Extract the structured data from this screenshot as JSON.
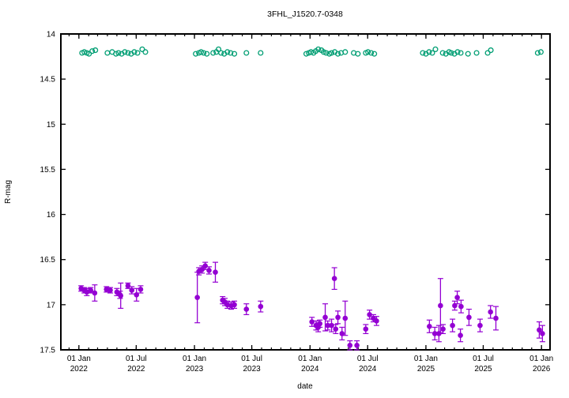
{
  "chart_data": {
    "type": "scatter",
    "title": "3FHL_J1520.7-0348",
    "xlabel": "date",
    "ylabel": "R-mag",
    "background": "#ffffff",
    "frame_color": "#000000",
    "grid": false,
    "legend": "none",
    "y_axis": {
      "limits": [
        17.5,
        14.0
      ],
      "inverted": true,
      "ticks": [
        14,
        14.5,
        15,
        15.5,
        16,
        16.5,
        17,
        17.5
      ]
    },
    "x_axis": {
      "range": [
        "2021-11-05",
        "2026-01-28"
      ],
      "minor_tick_interval": "monthly",
      "major_ticks": [
        {
          "date": "2022-01-01",
          "line1": "01 Jan",
          "line2": "2022"
        },
        {
          "date": "2022-07-01",
          "line1": "01 Jul",
          "line2": "2022"
        },
        {
          "date": "2023-01-01",
          "line1": "01 Jan",
          "line2": "2023"
        },
        {
          "date": "2023-07-01",
          "line1": "01 Jul",
          "line2": "2023"
        },
        {
          "date": "2024-01-01",
          "line1": "01 Jan",
          "line2": "2024"
        },
        {
          "date": "2024-07-01",
          "line1": "01 Jul",
          "line2": "2024"
        },
        {
          "date": "2025-01-01",
          "line1": "01 Jan",
          "line2": "2025"
        },
        {
          "date": "2025-07-01",
          "line1": "01 Jul",
          "line2": "2025"
        },
        {
          "date": "2026-01-01",
          "line1": "01 Jan",
          "line2": "2026"
        }
      ]
    },
    "series": [
      {
        "name": "bright-series-open-circles",
        "marker": "open-circle",
        "color": "#009e73",
        "error_bars": false,
        "points": [
          [
            "2022-01-11",
            14.21
          ],
          [
            "2022-01-18",
            14.2
          ],
          [
            "2022-01-26",
            14.21
          ],
          [
            "2022-02-02",
            14.22
          ],
          [
            "2022-02-12",
            14.19
          ],
          [
            "2022-02-22",
            14.18
          ],
          [
            "2022-04-01",
            14.21
          ],
          [
            "2022-04-16",
            14.2
          ],
          [
            "2022-04-28",
            14.22
          ],
          [
            "2022-05-06",
            14.21
          ],
          [
            "2022-05-16",
            14.22
          ],
          [
            "2022-05-26",
            14.2
          ],
          [
            "2022-06-05",
            14.21
          ],
          [
            "2022-06-15",
            14.22
          ],
          [
            "2022-06-25",
            14.2
          ],
          [
            "2022-07-05",
            14.21
          ],
          [
            "2022-07-20",
            14.17
          ],
          [
            "2022-07-30",
            14.2
          ],
          [
            "2023-01-05",
            14.22
          ],
          [
            "2023-01-15",
            14.21
          ],
          [
            "2023-01-22",
            14.2
          ],
          [
            "2023-01-30",
            14.21
          ],
          [
            "2023-02-09",
            14.22
          ],
          [
            "2023-03-01",
            14.21
          ],
          [
            "2023-03-11",
            14.2
          ],
          [
            "2023-03-18",
            14.17
          ],
          [
            "2023-03-26",
            14.21
          ],
          [
            "2023-04-05",
            14.22
          ],
          [
            "2023-04-15",
            14.2
          ],
          [
            "2023-04-25",
            14.21
          ],
          [
            "2023-05-07",
            14.22
          ],
          [
            "2023-06-14",
            14.21
          ],
          [
            "2023-07-29",
            14.21
          ],
          [
            "2023-12-20",
            14.22
          ],
          [
            "2023-12-28",
            14.21
          ],
          [
            "2024-01-04",
            14.2
          ],
          [
            "2024-01-12",
            14.21
          ],
          [
            "2024-01-19",
            14.19
          ],
          [
            "2024-01-27",
            14.17
          ],
          [
            "2024-02-06",
            14.18
          ],
          [
            "2024-02-13",
            14.2
          ],
          [
            "2024-02-21",
            14.21
          ],
          [
            "2024-03-02",
            14.22
          ],
          [
            "2024-03-09",
            14.21
          ],
          [
            "2024-03-19",
            14.2
          ],
          [
            "2024-03-29",
            14.22
          ],
          [
            "2024-04-08",
            14.21
          ],
          [
            "2024-04-21",
            14.2
          ],
          [
            "2024-05-18",
            14.21
          ],
          [
            "2024-05-31",
            14.22
          ],
          [
            "2024-06-25",
            14.21
          ],
          [
            "2024-07-02",
            14.2
          ],
          [
            "2024-07-12",
            14.21
          ],
          [
            "2024-07-22",
            14.22
          ],
          [
            "2024-12-22",
            14.21
          ],
          [
            "2025-01-01",
            14.22
          ],
          [
            "2025-01-11",
            14.2
          ],
          [
            "2025-01-21",
            14.21
          ],
          [
            "2025-01-31",
            14.17
          ],
          [
            "2025-02-23",
            14.21
          ],
          [
            "2025-03-05",
            14.22
          ],
          [
            "2025-03-15",
            14.2
          ],
          [
            "2025-03-22",
            14.21
          ],
          [
            "2025-04-01",
            14.22
          ],
          [
            "2025-04-11",
            14.2
          ],
          [
            "2025-04-21",
            14.21
          ],
          [
            "2025-05-14",
            14.22
          ],
          [
            "2025-06-10",
            14.21
          ],
          [
            "2025-07-15",
            14.21
          ],
          [
            "2025-07-25",
            14.18
          ],
          [
            "2025-12-20",
            14.21
          ],
          [
            "2025-12-30",
            14.2
          ]
        ]
      },
      {
        "name": "faint-series-filled-circles",
        "marker": "filled-circle",
        "color": "#9400d3",
        "error_bars": true,
        "points": [
          [
            "2022-01-08",
            16.82,
            0.03
          ],
          [
            "2022-01-18",
            16.84,
            0.03
          ],
          [
            "2022-01-26",
            16.86,
            0.04
          ],
          [
            "2022-02-07",
            16.84,
            0.03
          ],
          [
            "2022-02-20",
            16.87,
            0.09
          ],
          [
            "2022-03-29",
            16.83,
            0.03
          ],
          [
            "2022-04-10",
            16.84,
            0.03
          ],
          [
            "2022-05-01",
            16.86,
            0.04
          ],
          [
            "2022-05-11",
            16.89,
            0.04
          ],
          [
            "2022-05-13",
            16.9,
            0.14
          ],
          [
            "2022-06-05",
            16.79,
            0.03
          ],
          [
            "2022-06-17",
            16.84,
            0.04
          ],
          [
            "2022-07-02",
            16.89,
            0.07
          ],
          [
            "2022-07-15",
            16.83,
            0.04
          ],
          [
            "2023-01-10",
            16.92,
            0.28
          ],
          [
            "2023-01-15",
            16.63,
            0.04
          ],
          [
            "2023-01-25",
            16.61,
            0.04
          ],
          [
            "2023-02-04",
            16.57,
            0.04
          ],
          [
            "2023-02-16",
            16.62,
            0.04
          ],
          [
            "2023-03-08",
            16.64,
            0.11
          ],
          [
            "2023-03-31",
            16.95,
            0.04
          ],
          [
            "2023-04-07",
            16.97,
            0.04
          ],
          [
            "2023-04-15",
            17.0,
            0.04
          ],
          [
            "2023-04-27",
            17.01,
            0.04
          ],
          [
            "2023-05-07",
            17.0,
            0.04
          ],
          [
            "2023-06-14",
            17.05,
            0.06
          ],
          [
            "2023-07-29",
            17.02,
            0.06
          ],
          [
            "2024-01-07",
            17.19,
            0.05
          ],
          [
            "2024-01-20",
            17.23,
            0.05
          ],
          [
            "2024-01-27",
            17.25,
            0.05
          ],
          [
            "2024-02-01",
            17.21,
            0.04
          ],
          [
            "2024-02-18",
            17.14,
            0.15
          ],
          [
            "2024-02-26",
            17.23,
            0.05
          ],
          [
            "2024-03-09",
            17.23,
            0.07
          ],
          [
            "2024-03-18",
            16.71,
            0.12
          ],
          [
            "2024-03-22",
            17.27,
            0.05
          ],
          [
            "2024-03-29",
            17.14,
            0.07
          ],
          [
            "2024-04-11",
            17.32,
            0.07
          ],
          [
            "2024-04-21",
            17.15,
            0.19
          ],
          [
            "2024-05-06",
            17.45,
            0.05
          ],
          [
            "2024-05-28",
            17.45,
            0.05
          ],
          [
            "2024-06-25",
            17.27,
            0.05
          ],
          [
            "2024-07-07",
            17.11,
            0.05
          ],
          [
            "2024-07-19",
            17.15,
            0.04
          ],
          [
            "2024-07-29",
            17.18,
            0.05
          ],
          [
            "2025-01-12",
            17.24,
            0.07
          ],
          [
            "2025-01-29",
            17.32,
            0.07
          ],
          [
            "2025-02-11",
            17.32,
            0.09
          ],
          [
            "2025-02-16",
            17.01,
            0.3
          ],
          [
            "2025-02-24",
            17.27,
            0.05
          ],
          [
            "2025-03-26",
            17.23,
            0.07
          ],
          [
            "2025-04-02",
            17.01,
            0.05
          ],
          [
            "2025-04-10",
            16.92,
            0.07
          ],
          [
            "2025-04-20",
            17.34,
            0.07
          ],
          [
            "2025-04-22",
            17.02,
            0.07
          ],
          [
            "2025-05-17",
            17.14,
            0.09
          ],
          [
            "2025-06-21",
            17.23,
            0.07
          ],
          [
            "2025-07-24",
            17.08,
            0.07
          ],
          [
            "2025-08-10",
            17.15,
            0.13
          ],
          [
            "2025-12-25",
            17.28,
            0.09
          ],
          [
            "2026-01-04",
            17.32,
            0.09
          ]
        ]
      }
    ]
  }
}
